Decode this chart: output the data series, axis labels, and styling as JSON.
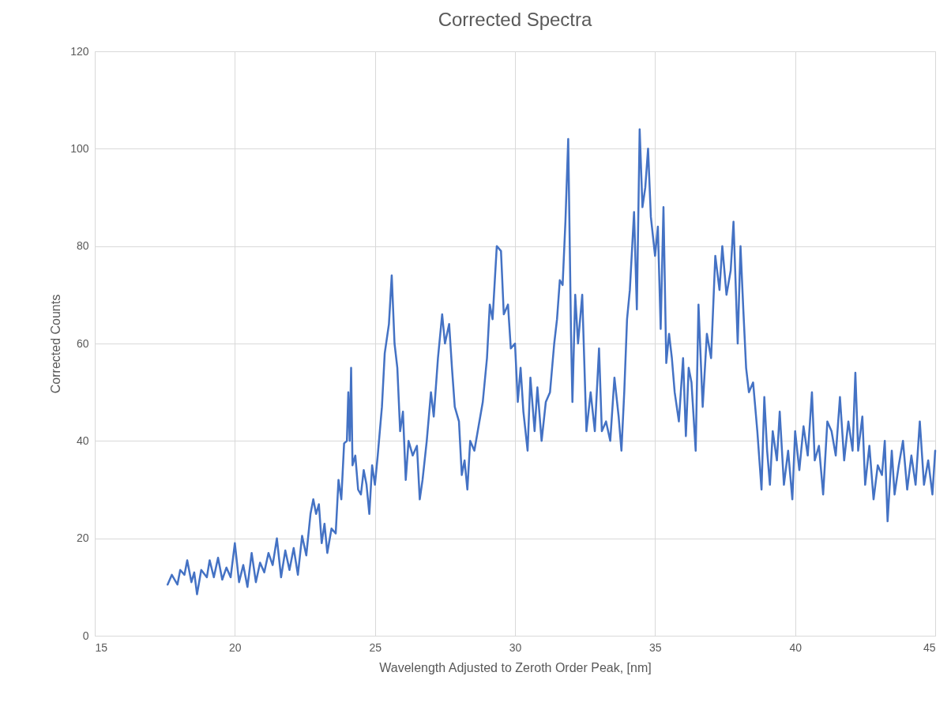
{
  "chart_data": {
    "type": "line",
    "title": "Corrected Spectra",
    "xlabel": "Wavelength Adjusted to Zeroth Order Peak, [nm]",
    "ylabel": "Corrected Counts",
    "xlim": [
      15,
      45
    ],
    "xticks": [
      15,
      20,
      25,
      30,
      35,
      40,
      45
    ],
    "ylim": [
      0,
      120
    ],
    "yticks": [
      0,
      20,
      40,
      60,
      80,
      100,
      120
    ],
    "grid": true,
    "marker": "none",
    "line_style": "solid",
    "x": [
      17.6,
      17.75,
      17.95,
      18.05,
      18.2,
      18.3,
      18.45,
      18.55,
      18.65,
      18.8,
      19.0,
      19.1,
      19.25,
      19.4,
      19.55,
      19.7,
      19.85,
      20.0,
      20.15,
      20.3,
      20.45,
      20.6,
      20.75,
      20.9,
      21.05,
      21.2,
      21.35,
      21.5,
      21.65,
      21.8,
      21.95,
      22.1,
      22.25,
      22.4,
      22.55,
      22.7,
      22.8,
      22.9,
      23.0,
      23.1,
      23.2,
      23.3,
      23.45,
      23.6,
      23.7,
      23.8,
      23.9,
      24.0,
      24.05,
      24.1,
      24.15,
      24.2,
      24.3,
      24.4,
      24.5,
      24.6,
      24.7,
      24.8,
      24.9,
      25.0,
      25.1,
      25.25,
      25.35,
      25.5,
      25.6,
      25.7,
      25.8,
      25.9,
      26.0,
      26.1,
      26.2,
      26.35,
      26.5,
      26.6,
      26.7,
      26.85,
      27.0,
      27.1,
      27.25,
      27.4,
      27.5,
      27.65,
      27.75,
      27.85,
      28.0,
      28.1,
      28.2,
      28.3,
      28.4,
      28.55,
      28.7,
      28.85,
      29.0,
      29.1,
      29.2,
      29.35,
      29.5,
      29.6,
      29.75,
      29.85,
      30.0,
      30.1,
      30.2,
      30.3,
      30.45,
      30.55,
      30.7,
      30.8,
      30.95,
      31.1,
      31.25,
      31.4,
      31.5,
      31.6,
      31.7,
      31.8,
      31.9,
      32.0,
      32.05,
      32.15,
      32.25,
      32.4,
      32.55,
      32.7,
      32.85,
      33.0,
      33.1,
      33.25,
      33.4,
      33.55,
      33.7,
      33.8,
      33.9,
      34.0,
      34.1,
      34.25,
      34.35,
      34.45,
      34.55,
      34.65,
      34.75,
      34.85,
      35.0,
      35.1,
      35.2,
      35.3,
      35.4,
      35.5,
      35.6,
      35.7,
      35.85,
      36.0,
      36.1,
      36.2,
      36.3,
      36.45,
      36.55,
      36.7,
      36.85,
      37.0,
      37.15,
      37.3,
      37.4,
      37.55,
      37.7,
      37.8,
      37.95,
      38.05,
      38.15,
      38.25,
      38.35,
      38.5,
      38.65,
      38.8,
      38.9,
      39.0,
      39.1,
      39.2,
      39.35,
      39.45,
      39.6,
      39.75,
      39.9,
      40.0,
      40.15,
      40.3,
      40.45,
      40.6,
      40.7,
      40.85,
      41.0,
      41.15,
      41.3,
      41.45,
      41.6,
      41.75,
      41.9,
      42.05,
      42.15,
      42.25,
      42.4,
      42.5,
      42.65,
      42.8,
      42.95,
      43.1,
      43.2,
      43.3,
      43.45,
      43.55,
      43.7,
      43.85,
      44.0,
      44.15,
      44.3,
      44.45,
      44.6,
      44.75,
      44.9,
      45.0
    ],
    "series": [
      {
        "color": "#4472c4",
        "values": [
          10.5,
          12.5,
          10.5,
          13.5,
          12.5,
          15.5,
          11,
          13,
          8.5,
          13.5,
          12,
          15.5,
          12,
          16,
          11.5,
          14,
          12,
          19,
          11,
          14.5,
          10,
          17,
          11,
          15,
          13,
          17,
          14.5,
          20,
          12,
          17.5,
          13.5,
          18,
          12.5,
          20.5,
          16.5,
          25,
          28,
          25,
          27,
          19,
          23,
          17,
          22,
          21,
          32,
          28,
          39.5,
          40,
          50,
          40,
          55,
          35,
          37,
          30,
          29,
          34,
          31,
          25,
          35,
          31,
          37,
          47,
          58,
          64,
          74,
          60,
          55,
          42,
          46,
          32,
          40,
          37,
          39,
          28,
          32,
          40,
          50,
          45,
          57,
          66,
          60,
          64,
          55,
          47,
          44,
          33,
          36,
          30,
          40,
          38,
          43,
          48,
          57,
          68,
          65,
          80,
          79,
          66,
          68,
          59,
          60,
          48,
          55,
          46,
          38,
          53,
          42,
          51,
          40,
          48,
          50,
          60,
          65,
          73,
          72,
          85,
          102,
          62,
          48,
          70,
          60,
          70,
          42,
          50,
          42,
          59,
          42,
          44,
          40,
          53,
          45,
          38,
          50,
          65,
          71,
          87,
          67,
          104,
          88,
          92,
          100,
          86,
          78,
          84,
          63,
          88,
          56,
          62,
          57,
          50,
          44,
          57,
          41,
          55,
          52,
          38,
          68,
          47,
          62,
          57,
          78,
          71,
          80,
          70,
          75,
          85,
          60,
          80,
          67,
          55,
          50,
          52,
          42,
          30,
          49,
          38,
          31,
          42,
          36,
          46,
          31,
          38,
          28,
          42,
          34,
          43,
          37,
          50,
          36,
          39,
          29,
          44,
          42,
          37,
          49,
          36,
          44,
          38,
          54,
          38,
          45,
          31,
          39,
          28,
          35,
          33,
          40,
          23.5,
          38,
          29,
          35,
          40,
          30,
          37,
          31,
          44,
          31,
          36,
          29,
          38
        ]
      }
    ]
  }
}
